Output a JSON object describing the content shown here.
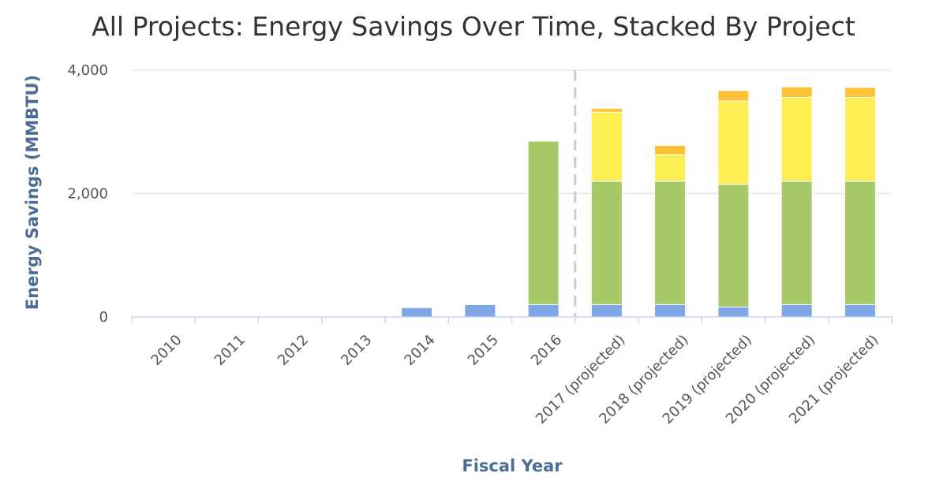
{
  "chart_data": {
    "type": "bar",
    "stacked": true,
    "title": "All Projects: Energy Savings Over Time, Stacked By Project",
    "xlabel": "Fiscal Year",
    "ylabel": "Energy Savings (MMBTU)",
    "ylim": [
      0,
      4000
    ],
    "yticks": [
      0,
      2000,
      4000
    ],
    "ytick_labels": [
      "0",
      "2,000",
      "4,000"
    ],
    "grid": true,
    "legend": "none",
    "projection_divider_after": "2016",
    "categories": [
      "2010",
      "2011",
      "2012",
      "2013",
      "2014",
      "2015",
      "2016",
      "2017 (projected)",
      "2018 (projected)",
      "2019 (projected)",
      "2020 (projected)",
      "2021 (projected)"
    ],
    "series": [
      {
        "color": "#7fa6e6",
        "values": [
          0,
          0,
          0,
          0,
          150,
          200,
          200,
          200,
          200,
          160,
          200,
          200
        ]
      },
      {
        "color": "#a6c96a",
        "values": [
          0,
          0,
          0,
          0,
          0,
          0,
          2650,
          2000,
          2000,
          1990,
          2000,
          2000
        ]
      },
      {
        "color": "#fdee53",
        "values": [
          0,
          0,
          0,
          0,
          0,
          0,
          0,
          1120,
          430,
          1350,
          1360,
          1360
        ]
      },
      {
        "color": "#fcc134",
        "values": [
          0,
          0,
          0,
          0,
          0,
          0,
          0,
          60,
          150,
          170,
          170,
          160
        ]
      }
    ]
  }
}
